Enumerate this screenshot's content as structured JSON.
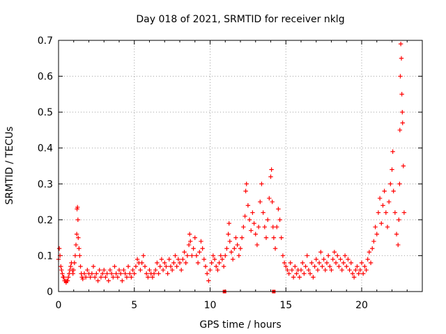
{
  "chart_data": {
    "type": "scatter",
    "title": "Day 018 of 2021, SRMTID for receiver nklg",
    "xlabel": "GPS time / hours",
    "ylabel": "SRMTID / TECUs",
    "xlim": [
      0,
      24
    ],
    "ylim": [
      0,
      0.7
    ],
    "xticks": [
      0,
      5,
      10,
      15,
      20
    ],
    "yticks": [
      0,
      0.1,
      0.2,
      0.3,
      0.4,
      0.5,
      0.6,
      0.7
    ],
    "x_tick_labels": [
      "0",
      "5",
      "10",
      "15",
      "20"
    ],
    "y_tick_labels": [
      "0",
      "0.1",
      "0.2",
      "0.3",
      "0.4",
      "0.5",
      "0.6",
      "0.7"
    ],
    "grid": true,
    "marker": "+",
    "color": "#ff0000",
    "gap_markers_x": [
      10.95,
      14.2
    ],
    "series": [
      {
        "name": "SRMTID",
        "points": [
          [
            0.0,
            0.09
          ],
          [
            0.05,
            0.12
          ],
          [
            0.1,
            0.1
          ],
          [
            0.15,
            0.07
          ],
          [
            0.2,
            0.06
          ],
          [
            0.25,
            0.05
          ],
          [
            0.3,
            0.04
          ],
          [
            0.35,
            0.04
          ],
          [
            0.4,
            0.03
          ],
          [
            0.45,
            0.03
          ],
          [
            0.5,
            0.025
          ],
          [
            0.55,
            0.03
          ],
          [
            0.6,
            0.03
          ],
          [
            0.65,
            0.04
          ],
          [
            0.7,
            0.05
          ],
          [
            0.75,
            0.06
          ],
          [
            0.8,
            0.07
          ],
          [
            0.85,
            0.08
          ],
          [
            0.9,
            0.06
          ],
          [
            0.95,
            0.05
          ],
          [
            1.0,
            0.06
          ],
          [
            1.05,
            0.08
          ],
          [
            1.1,
            0.1
          ],
          [
            1.15,
            0.13
          ],
          [
            1.2,
            0.16
          ],
          [
            1.22,
            0.23
          ],
          [
            1.25,
            0.235
          ],
          [
            1.28,
            0.2
          ],
          [
            1.3,
            0.15
          ],
          [
            1.35,
            0.12
          ],
          [
            1.4,
            0.1
          ],
          [
            1.45,
            0.07
          ],
          [
            1.5,
            0.05
          ],
          [
            1.55,
            0.04
          ],
          [
            1.6,
            0.035
          ],
          [
            1.7,
            0.05
          ],
          [
            1.8,
            0.04
          ],
          [
            1.9,
            0.06
          ],
          [
            2.0,
            0.05
          ],
          [
            2.1,
            0.04
          ],
          [
            2.2,
            0.05
          ],
          [
            2.3,
            0.07
          ],
          [
            2.4,
            0.04
          ],
          [
            2.5,
            0.05
          ],
          [
            2.6,
            0.03
          ],
          [
            2.7,
            0.06
          ],
          [
            2.8,
            0.04
          ],
          [
            2.9,
            0.05
          ],
          [
            3.0,
            0.06
          ],
          [
            3.1,
            0.04
          ],
          [
            3.2,
            0.05
          ],
          [
            3.3,
            0.03
          ],
          [
            3.4,
            0.06
          ],
          [
            3.5,
            0.05
          ],
          [
            3.6,
            0.04
          ],
          [
            3.7,
            0.07
          ],
          [
            3.8,
            0.05
          ],
          [
            3.9,
            0.04
          ],
          [
            4.0,
            0.06
          ],
          [
            4.1,
            0.05
          ],
          [
            4.2,
            0.03
          ],
          [
            4.3,
            0.06
          ],
          [
            4.4,
            0.05
          ],
          [
            4.5,
            0.04
          ],
          [
            4.6,
            0.07
          ],
          [
            4.7,
            0.05
          ],
          [
            4.8,
            0.04
          ],
          [
            4.9,
            0.06
          ],
          [
            5.0,
            0.05
          ],
          [
            5.1,
            0.07
          ],
          [
            5.2,
            0.09
          ],
          [
            5.3,
            0.08
          ],
          [
            5.4,
            0.06
          ],
          [
            5.5,
            0.08
          ],
          [
            5.6,
            0.1
          ],
          [
            5.7,
            0.07
          ],
          [
            5.8,
            0.05
          ],
          [
            5.9,
            0.04
          ],
          [
            6.0,
            0.06
          ],
          [
            6.1,
            0.05
          ],
          [
            6.2,
            0.04
          ],
          [
            6.3,
            0.05
          ],
          [
            6.4,
            0.06
          ],
          [
            6.5,
            0.08
          ],
          [
            6.6,
            0.05
          ],
          [
            6.7,
            0.07
          ],
          [
            6.8,
            0.09
          ],
          [
            6.9,
            0.06
          ],
          [
            7.0,
            0.08
          ],
          [
            7.1,
            0.07
          ],
          [
            7.2,
            0.05
          ],
          [
            7.3,
            0.09
          ],
          [
            7.4,
            0.07
          ],
          [
            7.5,
            0.06
          ],
          [
            7.6,
            0.08
          ],
          [
            7.7,
            0.1
          ],
          [
            7.8,
            0.07
          ],
          [
            7.9,
            0.09
          ],
          [
            8.0,
            0.08
          ],
          [
            8.1,
            0.06
          ],
          [
            8.2,
            0.09
          ],
          [
            8.3,
            0.11
          ],
          [
            8.4,
            0.08
          ],
          [
            8.5,
            0.1
          ],
          [
            8.6,
            0.13
          ],
          [
            8.65,
            0.16
          ],
          [
            8.7,
            0.14
          ],
          [
            8.8,
            0.1
          ],
          [
            8.9,
            0.12
          ],
          [
            9.0,
            0.15
          ],
          [
            9.1,
            0.1
          ],
          [
            9.2,
            0.08
          ],
          [
            9.3,
            0.11
          ],
          [
            9.4,
            0.14
          ],
          [
            9.5,
            0.12
          ],
          [
            9.6,
            0.09
          ],
          [
            9.7,
            0.07
          ],
          [
            9.8,
            0.05
          ],
          [
            9.9,
            0.03
          ],
          [
            10.0,
            0.06
          ],
          [
            10.1,
            0.08
          ],
          [
            10.2,
            0.1
          ],
          [
            10.3,
            0.09
          ],
          [
            10.4,
            0.07
          ],
          [
            10.5,
            0.06
          ],
          [
            10.6,
            0.08
          ],
          [
            10.7,
            0.1
          ],
          [
            10.8,
            0.09
          ],
          [
            10.9,
            0.07
          ],
          [
            11.0,
            0.1
          ],
          [
            11.1,
            0.12
          ],
          [
            11.2,
            0.16
          ],
          [
            11.25,
            0.19
          ],
          [
            11.3,
            0.14
          ],
          [
            11.4,
            0.11
          ],
          [
            11.5,
            0.09
          ],
          [
            11.6,
            0.12
          ],
          [
            11.7,
            0.15
          ],
          [
            11.8,
            0.13
          ],
          [
            11.9,
            0.1
          ],
          [
            12.0,
            0.12
          ],
          [
            12.1,
            0.15
          ],
          [
            12.2,
            0.18
          ],
          [
            12.3,
            0.21
          ],
          [
            12.35,
            0.28
          ],
          [
            12.4,
            0.3
          ],
          [
            12.5,
            0.24
          ],
          [
            12.6,
            0.2
          ],
          [
            12.7,
            0.17
          ],
          [
            12.8,
            0.22
          ],
          [
            12.9,
            0.19
          ],
          [
            13.0,
            0.16
          ],
          [
            13.1,
            0.13
          ],
          [
            13.2,
            0.18
          ],
          [
            13.3,
            0.25
          ],
          [
            13.4,
            0.3
          ],
          [
            13.5,
            0.22
          ],
          [
            13.6,
            0.18
          ],
          [
            13.7,
            0.15
          ],
          [
            13.8,
            0.2
          ],
          [
            13.9,
            0.26
          ],
          [
            14.0,
            0.32
          ],
          [
            14.05,
            0.34
          ],
          [
            14.1,
            0.25
          ],
          [
            14.15,
            0.18
          ],
          [
            14.2,
            0.15
          ],
          [
            14.3,
            0.12
          ],
          [
            14.4,
            0.18
          ],
          [
            14.5,
            0.23
          ],
          [
            14.6,
            0.2
          ],
          [
            14.7,
            0.15
          ],
          [
            14.8,
            0.1
          ],
          [
            14.9,
            0.08
          ],
          [
            15.0,
            0.07
          ],
          [
            15.1,
            0.06
          ],
          [
            15.2,
            0.05
          ],
          [
            15.3,
            0.08
          ],
          [
            15.4,
            0.06
          ],
          [
            15.5,
            0.04
          ],
          [
            15.6,
            0.07
          ],
          [
            15.7,
            0.05
          ],
          [
            15.8,
            0.06
          ],
          [
            15.9,
            0.04
          ],
          [
            16.0,
            0.06
          ],
          [
            16.1,
            0.08
          ],
          [
            16.2,
            0.05
          ],
          [
            16.3,
            0.07
          ],
          [
            16.4,
            0.1
          ],
          [
            16.5,
            0.06
          ],
          [
            16.6,
            0.05
          ],
          [
            16.7,
            0.08
          ],
          [
            16.8,
            0.04
          ],
          [
            16.9,
            0.07
          ],
          [
            17.0,
            0.09
          ],
          [
            17.1,
            0.06
          ],
          [
            17.2,
            0.08
          ],
          [
            17.3,
            0.11
          ],
          [
            17.4,
            0.07
          ],
          [
            17.5,
            0.09
          ],
          [
            17.6,
            0.06
          ],
          [
            17.7,
            0.08
          ],
          [
            17.8,
            0.1
          ],
          [
            17.9,
            0.07
          ],
          [
            18.0,
            0.06
          ],
          [
            18.1,
            0.09
          ],
          [
            18.2,
            0.11
          ],
          [
            18.3,
            0.08
          ],
          [
            18.4,
            0.1
          ],
          [
            18.5,
            0.07
          ],
          [
            18.6,
            0.09
          ],
          [
            18.7,
            0.06
          ],
          [
            18.8,
            0.08
          ],
          [
            18.9,
            0.1
          ],
          [
            19.0,
            0.07
          ],
          [
            19.1,
            0.09
          ],
          [
            19.2,
            0.06
          ],
          [
            19.3,
            0.08
          ],
          [
            19.4,
            0.05
          ],
          [
            19.5,
            0.04
          ],
          [
            19.6,
            0.06
          ],
          [
            19.7,
            0.07
          ],
          [
            19.8,
            0.05
          ],
          [
            19.9,
            0.06
          ],
          [
            20.0,
            0.08
          ],
          [
            20.1,
            0.05
          ],
          [
            20.2,
            0.07
          ],
          [
            20.3,
            0.06
          ],
          [
            20.4,
            0.09
          ],
          [
            20.5,
            0.11
          ],
          [
            20.6,
            0.08
          ],
          [
            20.7,
            0.12
          ],
          [
            20.8,
            0.14
          ],
          [
            20.9,
            0.18
          ],
          [
            21.0,
            0.16
          ],
          [
            21.1,
            0.22
          ],
          [
            21.2,
            0.26
          ],
          [
            21.3,
            0.19
          ],
          [
            21.4,
            0.24
          ],
          [
            21.5,
            0.28
          ],
          [
            21.6,
            0.22
          ],
          [
            21.7,
            0.18
          ],
          [
            21.8,
            0.25
          ],
          [
            21.9,
            0.3
          ],
          [
            22.0,
            0.34
          ],
          [
            22.05,
            0.39
          ],
          [
            22.1,
            0.28
          ],
          [
            22.2,
            0.22
          ],
          [
            22.3,
            0.16
          ],
          [
            22.4,
            0.13
          ],
          [
            22.45,
            0.2
          ],
          [
            22.5,
            0.3
          ],
          [
            22.52,
            0.45
          ],
          [
            22.55,
            0.6
          ],
          [
            22.58,
            0.69
          ],
          [
            22.62,
            0.65
          ],
          [
            22.65,
            0.55
          ],
          [
            22.68,
            0.5
          ],
          [
            22.7,
            0.47
          ],
          [
            22.75,
            0.35
          ],
          [
            22.8,
            0.22
          ]
        ]
      }
    ]
  }
}
